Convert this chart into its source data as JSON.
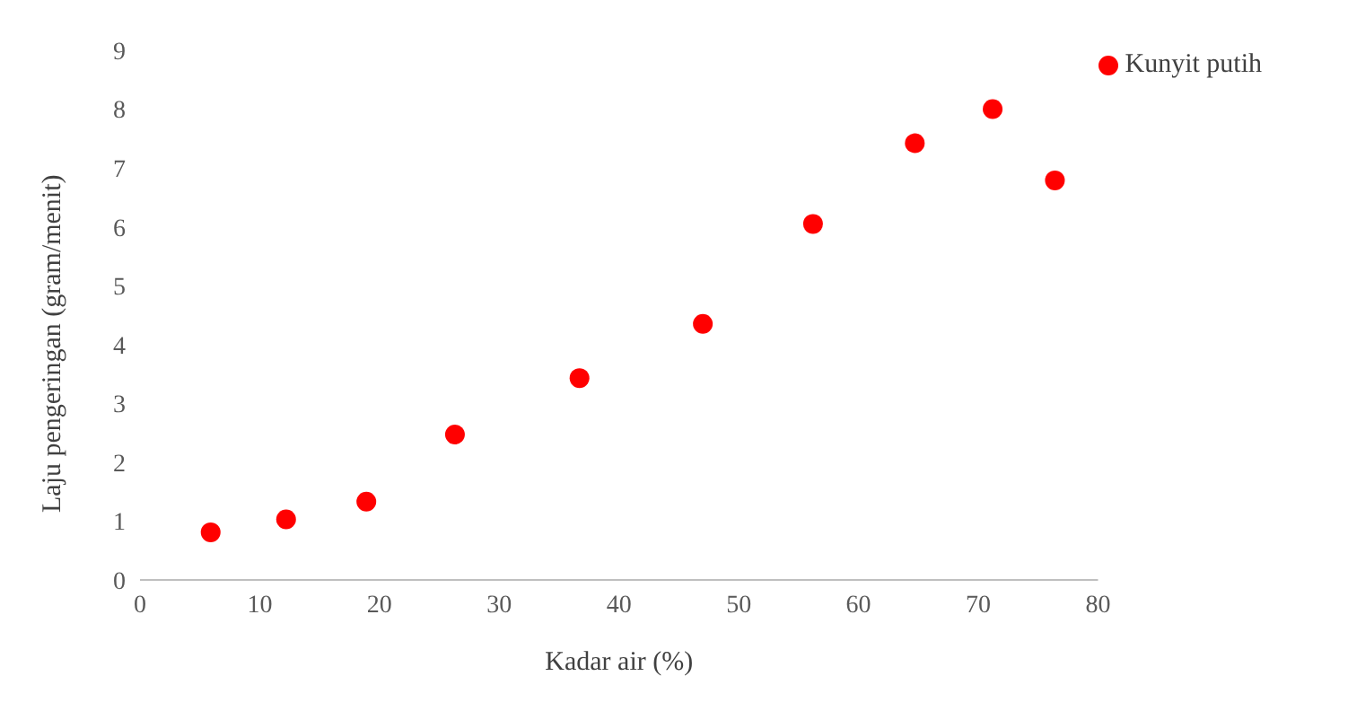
{
  "chart_data": {
    "type": "scatter",
    "xlabel": "Kadar air (%)",
    "ylabel": "Laju pengeringan  (gram/menit)",
    "x": [
      5.9,
      12.2,
      18.9,
      26.3,
      36.7,
      47.0,
      56.2,
      64.7,
      71.2,
      76.4
    ],
    "series": [
      {
        "name": "Kunyit putih",
        "color": "#ff0000",
        "values": [
          0.81,
          1.03,
          1.33,
          2.47,
          3.43,
          4.35,
          6.05,
          7.42,
          8.0,
          6.79
        ]
      }
    ],
    "xlim": [
      0,
      80
    ],
    "xticks": [
      0,
      10,
      20,
      30,
      40,
      50,
      60,
      70,
      80
    ],
    "ylim": [
      0,
      9
    ],
    "yticks": [
      0,
      1,
      2,
      3,
      4,
      5,
      6,
      7,
      8,
      9
    ],
    "grid": false,
    "legend": "top right",
    "marker": "circle"
  }
}
